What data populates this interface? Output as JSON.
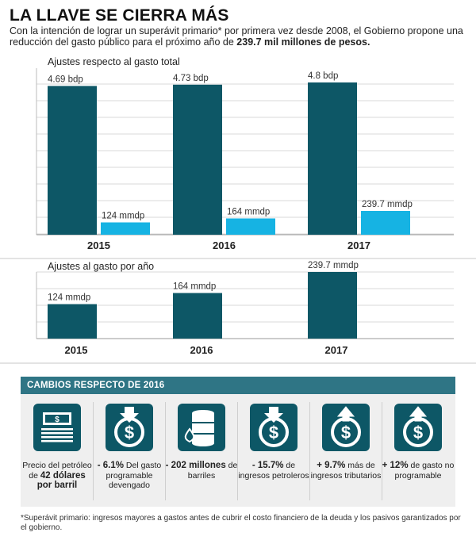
{
  "header": {
    "title": "LA LLAVE SE CIERRA MÁS",
    "subtitle_pre": "Con la intención de lograr un superávit primario* por primera vez desde 2008, el Gobierno propone una reducción del gasto público para el próximo año de ",
    "subtitle_bold": "239.7 mil millones de pesos."
  },
  "chart_data": [
    {
      "type": "bar",
      "title": "Ajustes respecto al gasto total",
      "categories": [
        "2015",
        "2016",
        "2017"
      ],
      "series": [
        {
          "values": [
            4.69,
            4.73,
            4.8
          ],
          "labels": [
            "4.69 bdp",
            "4.73 bdp",
            "4.8 bdp"
          ],
          "color": "#0d5766"
        },
        {
          "values": [
            124,
            164,
            239.7
          ],
          "labels": [
            "124 mmdp",
            "164 mmdp",
            "239.7 mmdp"
          ],
          "color": "#16b3e3"
        }
      ],
      "grid": true
    },
    {
      "type": "bar",
      "title": "Ajustes al gasto por año",
      "categories": [
        "2015",
        "2016",
        "2017"
      ],
      "series": [
        {
          "values": [
            124,
            164,
            239.7
          ],
          "labels": [
            "124 mmdp",
            "164 mmdp",
            "239.7 mmdp"
          ],
          "color": "#0d5766"
        }
      ],
      "grid": true
    }
  ],
  "changes": {
    "header": "CAMBIOS RESPECTO DE 2016",
    "items": [
      {
        "icon": "dollar-bills-icon",
        "pre": "Precio del petróleo de ",
        "strong": "42 dólares por barril",
        "post": ""
      },
      {
        "icon": "money-down-icon",
        "pre": "",
        "strong": "- 6.1%",
        "post": " Del gasto programable devengado"
      },
      {
        "icon": "oil-barrel-icon",
        "pre": "",
        "strong": "- 202 millones",
        "post": " de barriles"
      },
      {
        "icon": "money-down-icon",
        "pre": "",
        "strong": "- 15.7%",
        "post": " de ingresos petroleros"
      },
      {
        "icon": "money-up-icon",
        "pre": "",
        "strong": "+ 9.7%",
        "post": " más de ingresos tributarios"
      },
      {
        "icon": "money-up-icon",
        "pre": "",
        "strong": "+ 12%",
        "post": " de gasto no programable"
      }
    ]
  },
  "footnote": "*Superávit primario: ingresos mayores a gastos antes de cubrir el costo financiero de la deuda y los pasivos garantizados por el gobierno."
}
